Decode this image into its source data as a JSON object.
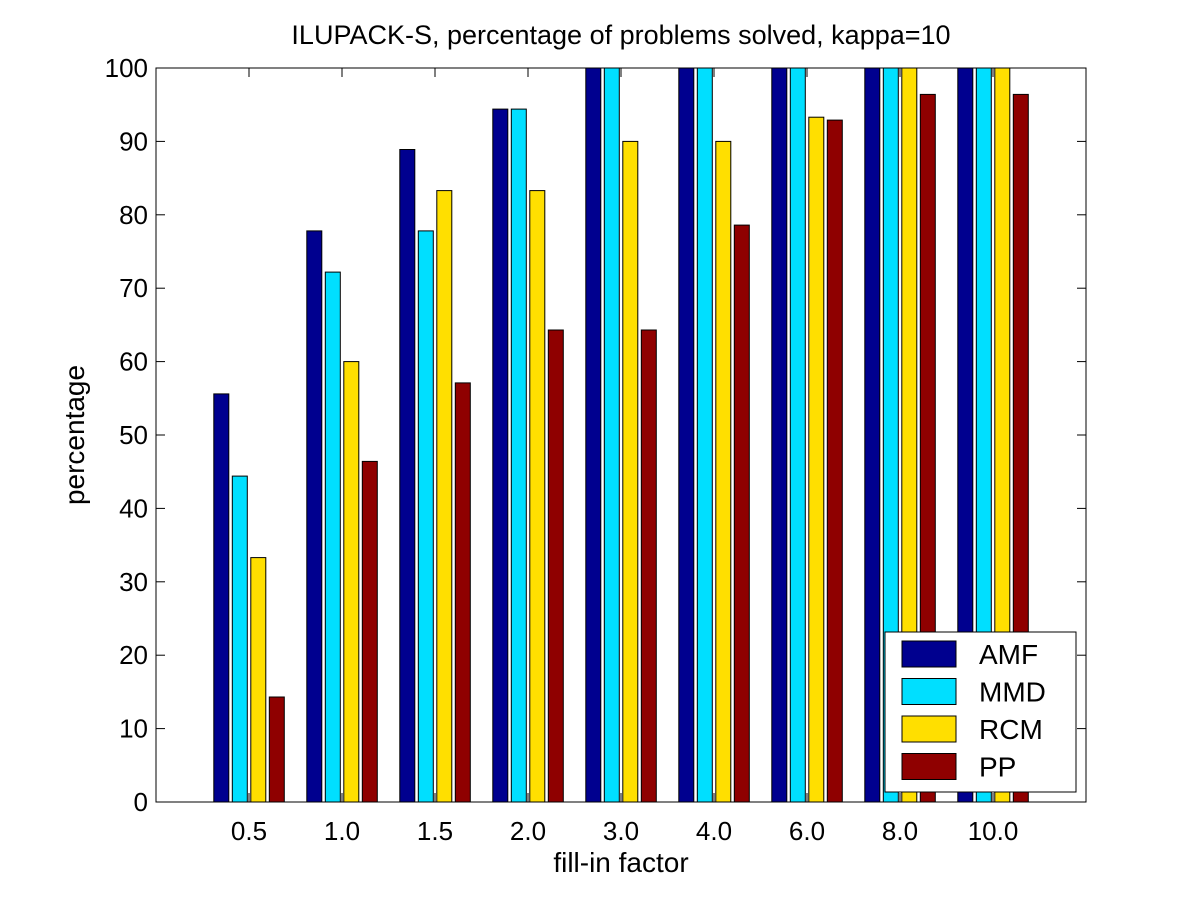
{
  "chart_data": {
    "type": "bar",
    "title": "ILUPACK-S, percentage of problems solved, kappa=10",
    "xlabel": "fill-in factor",
    "ylabel": "percentage",
    "categories": [
      "0.5",
      "1.0",
      "1.5",
      "2.0",
      "3.0",
      "4.0",
      "6.0",
      "8.0",
      "10.0"
    ],
    "ylim": [
      0,
      100
    ],
    "yticks": [
      "0",
      "10",
      "20",
      "30",
      "40",
      "50",
      "60",
      "70",
      "80",
      "90",
      "100"
    ],
    "grid": false,
    "legend_position": "bottom-right",
    "series": [
      {
        "name": "AMF",
        "color": "#00008f",
        "values": [
          55.6,
          77.8,
          88.9,
          94.4,
          100,
          100,
          100,
          100,
          100
        ]
      },
      {
        "name": "MMD",
        "color": "#00dfff",
        "values": [
          44.4,
          72.2,
          77.8,
          94.4,
          100,
          100,
          100,
          100,
          100
        ]
      },
      {
        "name": "RCM",
        "color": "#ffdf00",
        "values": [
          33.3,
          60.0,
          83.3,
          83.3,
          90.0,
          90.0,
          93.3,
          100,
          100
        ]
      },
      {
        "name": "PP",
        "color": "#8f0000",
        "values": [
          14.3,
          46.4,
          57.1,
          64.3,
          64.3,
          78.6,
          92.9,
          96.4,
          96.4
        ]
      }
    ]
  }
}
